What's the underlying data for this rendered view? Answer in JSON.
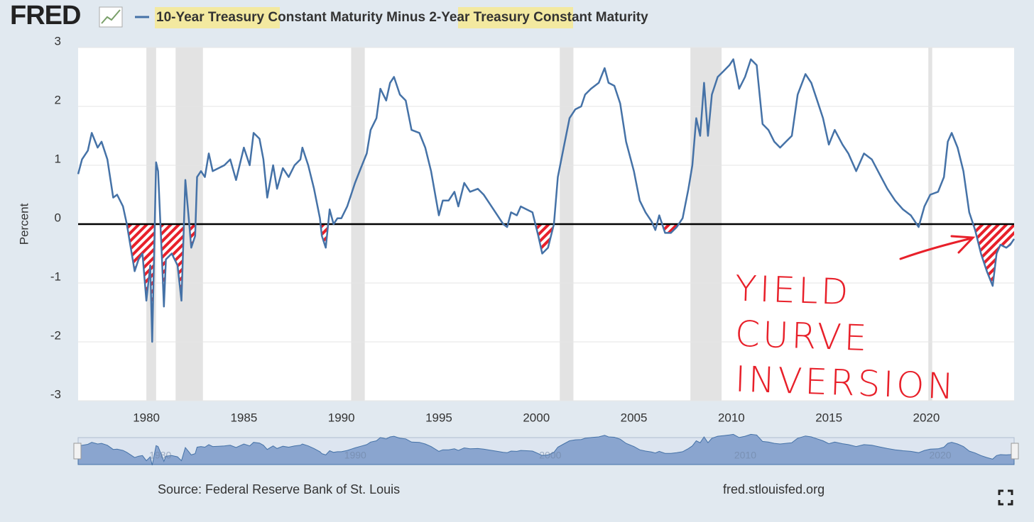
{
  "chart_data": {
    "type": "line",
    "logo": "FRED",
    "y_label": "Percent",
    "source": "Source: Federal Reserve Bank of St. Louis",
    "site": "fred.stlouisfed.org",
    "annotation": [
      "YIELD",
      "CURVE",
      "INVERSION"
    ],
    "xlim": [
      1976.5,
      2024.5
    ],
    "xticks": [
      1980,
      1985,
      1990,
      1995,
      2000,
      2005,
      2010,
      2015,
      2020
    ],
    "ylim": [
      -3,
      3
    ],
    "yticks": [
      -3,
      -2,
      -1,
      0,
      1,
      2,
      3
    ],
    "grid": true,
    "reference_line": 0,
    "navigator_xticks": [
      1980,
      1990,
      2000,
      2010,
      2020
    ],
    "recessions": [
      [
        1980.0,
        1980.5
      ],
      [
        1981.5,
        1982.9
      ],
      [
        1990.5,
        1991.2
      ],
      [
        2001.2,
        2001.9
      ],
      [
        2007.9,
        2009.5
      ],
      [
        2020.1,
        2020.3
      ]
    ],
    "x": [
      1976.5,
      1976.7,
      1977.0,
      1977.2,
      1977.5,
      1977.7,
      1978.0,
      1978.3,
      1978.5,
      1978.8,
      1979.0,
      1979.2,
      1979.4,
      1979.6,
      1979.8,
      1980.0,
      1980.2,
      1980.3,
      1980.5,
      1980.6,
      1980.8,
      1980.9,
      1981.0,
      1981.3,
      1981.6,
      1981.8,
      1982.0,
      1982.2,
      1982.3,
      1982.5,
      1982.6,
      1982.8,
      1983.0,
      1983.2,
      1983.4,
      1983.7,
      1984.0,
      1984.3,
      1984.6,
      1985.0,
      1985.3,
      1985.5,
      1985.8,
      1986.0,
      1986.2,
      1986.5,
      1986.7,
      1987.0,
      1987.3,
      1987.6,
      1987.9,
      1988.0,
      1988.3,
      1988.6,
      1988.9,
      1989.0,
      1989.2,
      1989.4,
      1989.6,
      1989.8,
      1990.0,
      1990.3,
      1990.5,
      1990.7,
      1991.0,
      1991.3,
      1991.5,
      1991.8,
      1992.0,
      1992.3,
      1992.5,
      1992.7,
      1993.0,
      1993.3,
      1993.6,
      1994.0,
      1994.3,
      1994.6,
      1995.0,
      1995.2,
      1995.5,
      1995.8,
      1996.0,
      1996.3,
      1996.6,
      1997.0,
      1997.3,
      1997.6,
      1998.0,
      1998.3,
      1998.5,
      1998.7,
      1999.0,
      1999.2,
      1999.5,
      1999.8,
      2000.1,
      2000.3,
      2000.6,
      2000.9,
      2001.1,
      2001.4,
      2001.7,
      2002.0,
      2002.3,
      2002.5,
      2002.8,
      2003.2,
      2003.5,
      2003.7,
      2004.0,
      2004.3,
      2004.6,
      2005.0,
      2005.3,
      2005.6,
      2005.9,
      2006.1,
      2006.3,
      2006.6,
      2006.9,
      2007.2,
      2007.5,
      2007.8,
      2008.0,
      2008.2,
      2008.4,
      2008.6,
      2008.8,
      2009.0,
      2009.3,
      2009.6,
      2009.9,
      2010.1,
      2010.4,
      2010.7,
      2011.0,
      2011.3,
      2011.6,
      2011.9,
      2012.2,
      2012.5,
      2012.8,
      2013.1,
      2013.4,
      2013.8,
      2014.1,
      2014.4,
      2014.7,
      2015.0,
      2015.3,
      2015.7,
      2016.0,
      2016.4,
      2016.8,
      2017.2,
      2017.6,
      2018.0,
      2018.4,
      2018.8,
      2019.2,
      2019.6,
      2019.9,
      2020.2,
      2020.6,
      2020.9,
      2021.1,
      2021.3,
      2021.6,
      2021.9,
      2022.2,
      2022.5,
      2022.8,
      2023.1,
      2023.4,
      2023.6,
      2023.8,
      2024.1,
      2024.3,
      2024.5
    ],
    "series": [
      {
        "name": "10-Year Treasury Constant Maturity Minus 2-Year Treasury Constant Maturity",
        "color": "#4572a7",
        "values": [
          0.85,
          1.1,
          1.25,
          1.55,
          1.3,
          1.4,
          1.1,
          0.45,
          0.5,
          0.3,
          0.0,
          -0.4,
          -0.8,
          -0.6,
          -0.5,
          -1.3,
          -0.7,
          -2.0,
          1.05,
          0.9,
          -0.6,
          -1.4,
          -0.6,
          -0.5,
          -0.7,
          -1.3,
          0.75,
          0.0,
          -0.4,
          -0.2,
          0.8,
          0.9,
          0.8,
          1.2,
          0.9,
          0.95,
          1.0,
          1.1,
          0.75,
          1.3,
          1.0,
          1.55,
          1.45,
          1.1,
          0.45,
          1.0,
          0.6,
          0.95,
          0.8,
          1.0,
          1.1,
          1.3,
          1.0,
          0.6,
          0.1,
          -0.2,
          -0.4,
          0.25,
          0.0,
          0.1,
          0.1,
          0.3,
          0.5,
          0.7,
          0.95,
          1.2,
          1.6,
          1.8,
          2.3,
          2.1,
          2.4,
          2.5,
          2.2,
          2.1,
          1.6,
          1.55,
          1.3,
          0.9,
          0.15,
          0.4,
          0.4,
          0.55,
          0.3,
          0.7,
          0.55,
          0.6,
          0.5,
          0.35,
          0.15,
          0.0,
          -0.05,
          0.2,
          0.15,
          0.3,
          0.25,
          0.2,
          -0.2,
          -0.5,
          -0.4,
          0.0,
          0.8,
          1.3,
          1.8,
          1.95,
          2.0,
          2.2,
          2.3,
          2.4,
          2.65,
          2.4,
          2.35,
          2.05,
          1.4,
          0.9,
          0.4,
          0.2,
          0.05,
          -0.1,
          0.15,
          -0.15,
          -0.15,
          -0.05,
          0.1,
          0.6,
          1.0,
          1.8,
          1.5,
          2.4,
          1.5,
          2.2,
          2.5,
          2.6,
          2.7,
          2.8,
          2.3,
          2.5,
          2.8,
          2.7,
          1.7,
          1.6,
          1.4,
          1.3,
          1.4,
          1.5,
          2.2,
          2.55,
          2.4,
          2.1,
          1.8,
          1.35,
          1.6,
          1.35,
          1.2,
          0.9,
          1.2,
          1.1,
          0.85,
          0.6,
          0.4,
          0.25,
          0.15,
          -0.05,
          0.3,
          0.5,
          0.55,
          0.8,
          1.4,
          1.55,
          1.3,
          0.9,
          0.2,
          -0.1,
          -0.5,
          -0.8,
          -1.05,
          -0.5,
          -0.35,
          -0.4,
          -0.35,
          -0.25
        ]
      }
    ]
  }
}
